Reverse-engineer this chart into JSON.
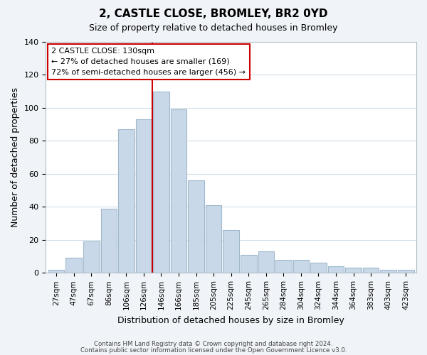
{
  "title1": "2, CASTLE CLOSE, BROMLEY, BR2 0YD",
  "title2": "Size of property relative to detached houses in Bromley",
  "xlabel": "Distribution of detached houses by size in Bromley",
  "ylabel": "Number of detached properties",
  "bar_labels": [
    "27sqm",
    "47sqm",
    "67sqm",
    "86sqm",
    "106sqm",
    "126sqm",
    "146sqm",
    "166sqm",
    "185sqm",
    "205sqm",
    "225sqm",
    "245sqm",
    "265sqm",
    "284sqm",
    "304sqm",
    "324sqm",
    "344sqm",
    "364sqm",
    "383sqm",
    "403sqm",
    "423sqm"
  ],
  "bar_values": [
    2,
    9,
    19,
    39,
    87,
    93,
    110,
    99,
    56,
    41,
    26,
    11,
    13,
    8,
    8,
    6,
    4,
    3,
    3,
    2,
    2
  ],
  "bar_color": "#c8d8e8",
  "bar_edge_color": "#a0b8cc",
  "vline_x": 5.5,
  "vline_color": "#cc0000",
  "annotation_title": "2 CASTLE CLOSE: 130sqm",
  "annotation_line1": "← 27% of detached houses are smaller (169)",
  "annotation_line2": "72% of semi-detached houses are larger (456) →",
  "annotation_box_color": "#ffffff",
  "annotation_box_edge": "#cc0000",
  "ylim": [
    0,
    140
  ],
  "yticks": [
    0,
    20,
    40,
    60,
    80,
    100,
    120,
    140
  ],
  "footer1": "Contains HM Land Registry data © Crown copyright and database right 2024.",
  "footer2": "Contains public sector information licensed under the Open Government Licence v3.0.",
  "bg_color": "#f0f4f8",
  "plot_bg_color": "#ffffff",
  "grid_color": "#d0dce8"
}
